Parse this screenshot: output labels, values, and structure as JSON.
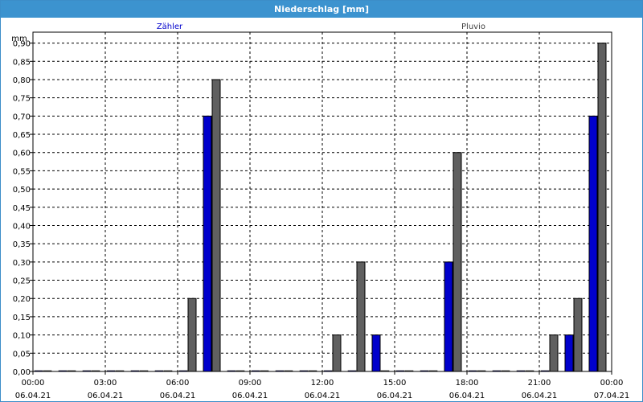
{
  "window": {
    "title": "Niederschlag [mm]"
  },
  "chart_data": {
    "type": "bar",
    "title": "Niederschlag [mm]",
    "ylabel": "mm",
    "ylim": [
      0,
      0.93
    ],
    "yticks": [
      "0,00",
      "0,05",
      "0,10",
      "0,15",
      "0,20",
      "0,25",
      "0,30",
      "0,35",
      "0,40",
      "0,45",
      "0,50",
      "0,55",
      "0,60",
      "0,65",
      "0,70",
      "0,75",
      "0,80",
      "0,85",
      "0,90"
    ],
    "xticks": [
      {
        "time": "00:00",
        "date": "06.04.21"
      },
      {
        "time": "03:00",
        "date": "06.04.21"
      },
      {
        "time": "06:00",
        "date": "06.04.21"
      },
      {
        "time": "09:00",
        "date": "06.04.21"
      },
      {
        "time": "12:00",
        "date": "06.04.21"
      },
      {
        "time": "15:00",
        "date": "06.04.21"
      },
      {
        "time": "18:00",
        "date": "06.04.21"
      },
      {
        "time": "21:00",
        "date": "06.04.21"
      },
      {
        "time": "00:00",
        "date": "07.04.21"
      }
    ],
    "categories": [
      "00:00",
      "01:00",
      "02:00",
      "03:00",
      "04:00",
      "05:00",
      "06:00",
      "07:00",
      "08:00",
      "09:00",
      "10:00",
      "11:00",
      "12:00",
      "13:00",
      "14:00",
      "15:00",
      "16:00",
      "17:00",
      "18:00",
      "19:00",
      "20:00",
      "21:00",
      "22:00",
      "23:00"
    ],
    "grid": true,
    "legend": "top",
    "series": [
      {
        "name": "Zähler",
        "color": "#0000cc",
        "values": [
          0,
          0,
          0,
          0,
          0,
          0,
          0,
          0.7,
          0,
          0,
          0,
          0,
          0,
          0,
          0.1,
          0,
          0,
          0.3,
          0,
          0,
          0,
          0,
          0.1,
          0.7
        ]
      },
      {
        "name": "Pluvio",
        "color": "#606060",
        "values": [
          0,
          0,
          0,
          0,
          0,
          0,
          0.2,
          0.8,
          0,
          0,
          0,
          0,
          0.1,
          0.3,
          0,
          0,
          0,
          0.6,
          0,
          0,
          0,
          0.1,
          0.2,
          0.9
        ]
      }
    ]
  }
}
